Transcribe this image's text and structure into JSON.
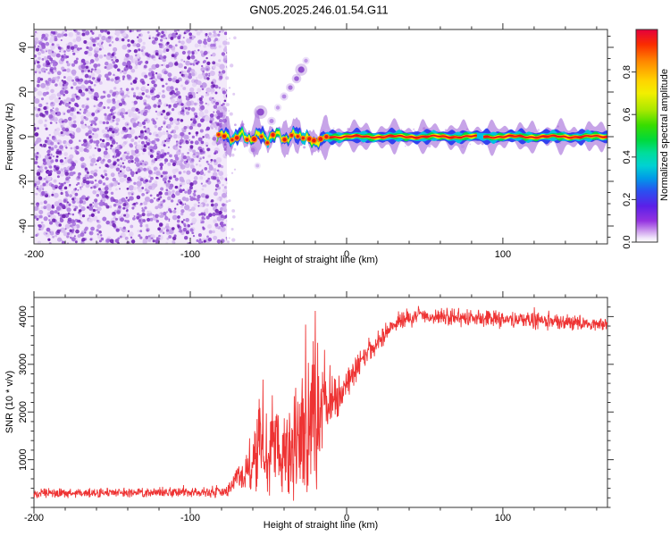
{
  "title": "GN05.2025.246.01.54.G11",
  "frame_color": "#333333",
  "chart_data": [
    {
      "id": "spectrogram",
      "type": "heatmap",
      "xlabel": "Height of straight line (km)",
      "ylabel": "Frequency (Hz)",
      "xlim": [
        -200,
        166.9
      ],
      "ylim": [
        -48,
        48
      ],
      "xticks": [
        -200,
        -100,
        0,
        100
      ],
      "xtick_labels": [
        "-200",
        "-100",
        "0",
        "100"
      ],
      "xtick_minor_step": 20,
      "yticks": [
        -40,
        -20,
        0,
        20,
        40
      ],
      "ytick_labels": [
        "-40",
        "-20",
        "0",
        "20",
        "40"
      ],
      "ytick_minor_step": 5,
      "colorbar": {
        "label": "Normalized spectral amplitude",
        "range": [
          0,
          1
        ],
        "ticks": [
          0,
          0.2,
          0.4,
          0.6,
          0.8
        ],
        "tick_labels": [
          "0.0",
          "0.2",
          "0.4",
          "0.6",
          "0.8"
        ],
        "stops": [
          [
            1.0,
            "#e4003c"
          ],
          [
            0.93,
            "#fa2c00"
          ],
          [
            0.85,
            "#ff8800"
          ],
          [
            0.76,
            "#ffd300"
          ],
          [
            0.7,
            "#f2ef00"
          ],
          [
            0.62,
            "#a8e800"
          ],
          [
            0.55,
            "#38dd00"
          ],
          [
            0.48,
            "#00d93c"
          ],
          [
            0.42,
            "#00dd9a"
          ],
          [
            0.36,
            "#00d2d2"
          ],
          [
            0.3,
            "#009ae8"
          ],
          [
            0.24,
            "#2a50f0"
          ],
          [
            0.17,
            "#5a20e8"
          ],
          [
            0.1,
            "#9432e0"
          ],
          [
            0.05,
            "#cfa0ee"
          ],
          [
            0.02,
            "#efe4fa"
          ],
          [
            0.0,
            "#ffffff"
          ]
        ]
      },
      "noise_region": {
        "x_range": [
          -200,
          -76.5
        ],
        "background": "#f3eafa",
        "seed": 7,
        "speckle_layers": [
          {
            "count": 1300,
            "rmin": 1.2,
            "rmax": 3.2,
            "colors": [
              "#e4d2f4",
              "#d4b8ef",
              "#c39fe8"
            ]
          },
          {
            "count": 950,
            "rmin": 0.9,
            "rmax": 2.6,
            "colors": [
              "#a873de",
              "#9a5cd4"
            ]
          },
          {
            "count": 420,
            "rmin": 1.1,
            "rmax": 2.4,
            "colors": [
              "#8138c8",
              "#6f22b4"
            ]
          }
        ]
      },
      "ridge": {
        "x_start": -83,
        "x_end": 166.9,
        "center_hz": 0,
        "seed": 21,
        "dip": {
          "x": -21,
          "depth_hz": -4.2
        },
        "wiggly_until_km": -12,
        "core_gaps_km": [
          [
            83.5,
            87.5
          ]
        ],
        "layers": [
          {
            "name": "purple-halo",
            "color": "#8f4ad2",
            "half_width_hz": 5.5,
            "opacity": 0.5
          },
          {
            "name": "blue",
            "color": "#2a3cee",
            "half_width_hz": 3.2,
            "opacity": 0.95
          },
          {
            "name": "cyan",
            "color": "#00c0e0",
            "half_width_hz": 2.3,
            "opacity": 1
          },
          {
            "name": "green",
            "color": "#00d944",
            "half_width_hz": 1.6,
            "opacity": 1
          },
          {
            "name": "yellow",
            "color": "#f0ee00",
            "half_width_hz": 1.0,
            "opacity": 1
          },
          {
            "name": "orange",
            "color": "#ff9100",
            "half_width_hz": 0.8,
            "opacity": 1
          },
          {
            "name": "red-core",
            "color": "#ea1515",
            "half_width_hz": 0.55,
            "opacity": 1
          }
        ]
      },
      "streak_blobs": [
        {
          "x": -55,
          "f": 11,
          "r": 4.0,
          "color": "#7a2ec4"
        },
        {
          "x": -60,
          "f": -6,
          "r": 2.5,
          "color": "#b88ae6"
        },
        {
          "x": -57,
          "f": -13,
          "r": 2.0,
          "color": "#c9a6ec"
        },
        {
          "x": -48,
          "f": 7,
          "r": 2.5,
          "color": "#a873de"
        },
        {
          "x": -44,
          "f": 13,
          "r": 2.2,
          "color": "#b88ae6"
        },
        {
          "x": -40,
          "f": 18,
          "r": 2.4,
          "color": "#a873de"
        },
        {
          "x": -36,
          "f": 22,
          "r": 2.6,
          "color": "#9a5cd4"
        },
        {
          "x": -32,
          "f": 26,
          "r": 2.8,
          "color": "#8a44cf"
        },
        {
          "x": -29,
          "f": 30,
          "r": 3.6,
          "color": "#7a2ec4"
        },
        {
          "x": -26,
          "f": 34,
          "r": 2.2,
          "color": "#b88ae6"
        }
      ]
    },
    {
      "id": "snr",
      "type": "line",
      "xlabel": "Height of straight line (km)",
      "ylabel": "SNR (10 * v/v)",
      "xlim": [
        -200,
        166.9
      ],
      "ylim": [
        0,
        4400
      ],
      "xticks": [
        -200,
        -100,
        0,
        100
      ],
      "xtick_labels": [
        "-200",
        "-100",
        "0",
        "100"
      ],
      "xtick_minor_step": 20,
      "yticks": [
        1000,
        2000,
        3000,
        4000
      ],
      "ytick_labels": [
        "1000",
        "2000",
        "3000",
        "4000"
      ],
      "ytick_minor_step": 200,
      "line_color": "#ee3333",
      "seed": 13,
      "sample_step_km": 0.22,
      "profile": [
        [
          -200,
          300,
          115
        ],
        [
          -150,
          305,
          115
        ],
        [
          -110,
          310,
          120
        ],
        [
          -85,
          320,
          125
        ],
        [
          -77,
          340,
          150
        ],
        [
          -73,
          450,
          230
        ],
        [
          -70,
          680,
          330
        ],
        [
          -67,
          590,
          330
        ],
        [
          -64,
          780,
          430
        ],
        [
          -61,
          680,
          480
        ],
        [
          -58,
          1150,
          1050
        ],
        [
          -55,
          1250,
          1150
        ],
        [
          -52,
          900,
          800
        ],
        [
          -49,
          1080,
          980
        ],
        [
          -46,
          1280,
          1180
        ],
        [
          -43,
          1080,
          980
        ],
        [
          -40,
          1280,
          1180
        ],
        [
          -37,
          1100,
          1000
        ],
        [
          -34,
          1450,
          1350
        ],
        [
          -31,
          1280,
          1200
        ],
        [
          -28,
          1850,
          1750
        ],
        [
          -25,
          1500,
          1420
        ],
        [
          -22,
          2050,
          1900
        ],
        [
          -20,
          2300,
          1850
        ],
        [
          -18,
          2050,
          1450
        ],
        [
          -16,
          2100,
          1050
        ],
        [
          -14,
          2200,
          850
        ],
        [
          -12,
          2050,
          700
        ],
        [
          -10,
          2200,
          620
        ],
        [
          -8,
          2300,
          560
        ],
        [
          -6,
          2250,
          520
        ],
        [
          -4,
          2400,
          470
        ],
        [
          -2,
          2500,
          430
        ],
        [
          0,
          2600,
          410
        ],
        [
          3,
          2750,
          390
        ],
        [
          6,
          2900,
          370
        ],
        [
          9,
          3050,
          350
        ],
        [
          12,
          3150,
          330
        ],
        [
          15,
          3280,
          310
        ],
        [
          18,
          3400,
          290
        ],
        [
          21,
          3500,
          275
        ],
        [
          24,
          3600,
          260
        ],
        [
          27,
          3700,
          245
        ],
        [
          30,
          3790,
          230
        ],
        [
          34,
          3880,
          215
        ],
        [
          38,
          3940,
          205
        ],
        [
          44,
          3975,
          200
        ],
        [
          52,
          3995,
          200
        ],
        [
          60,
          3995,
          205
        ],
        [
          70,
          3985,
          215
        ],
        [
          80,
          3965,
          225
        ],
        [
          90,
          3950,
          225
        ],
        [
          100,
          3940,
          215
        ],
        [
          110,
          3925,
          205
        ],
        [
          120,
          3905,
          200
        ],
        [
          130,
          3885,
          195
        ],
        [
          140,
          3870,
          190
        ],
        [
          150,
          3855,
          190
        ],
        [
          160,
          3840,
          185
        ],
        [
          166.9,
          3835,
          185
        ]
      ],
      "notable_points": [
        [
          -26.3,
          3830
        ],
        [
          -25.4,
          320
        ],
        [
          -20,
          4120
        ],
        [
          -19.2,
          380
        ],
        [
          -53.5,
          2680
        ],
        [
          -33.8,
          140
        ],
        [
          -47.5,
          2350
        ],
        [
          -62,
          1450
        ]
      ]
    }
  ]
}
